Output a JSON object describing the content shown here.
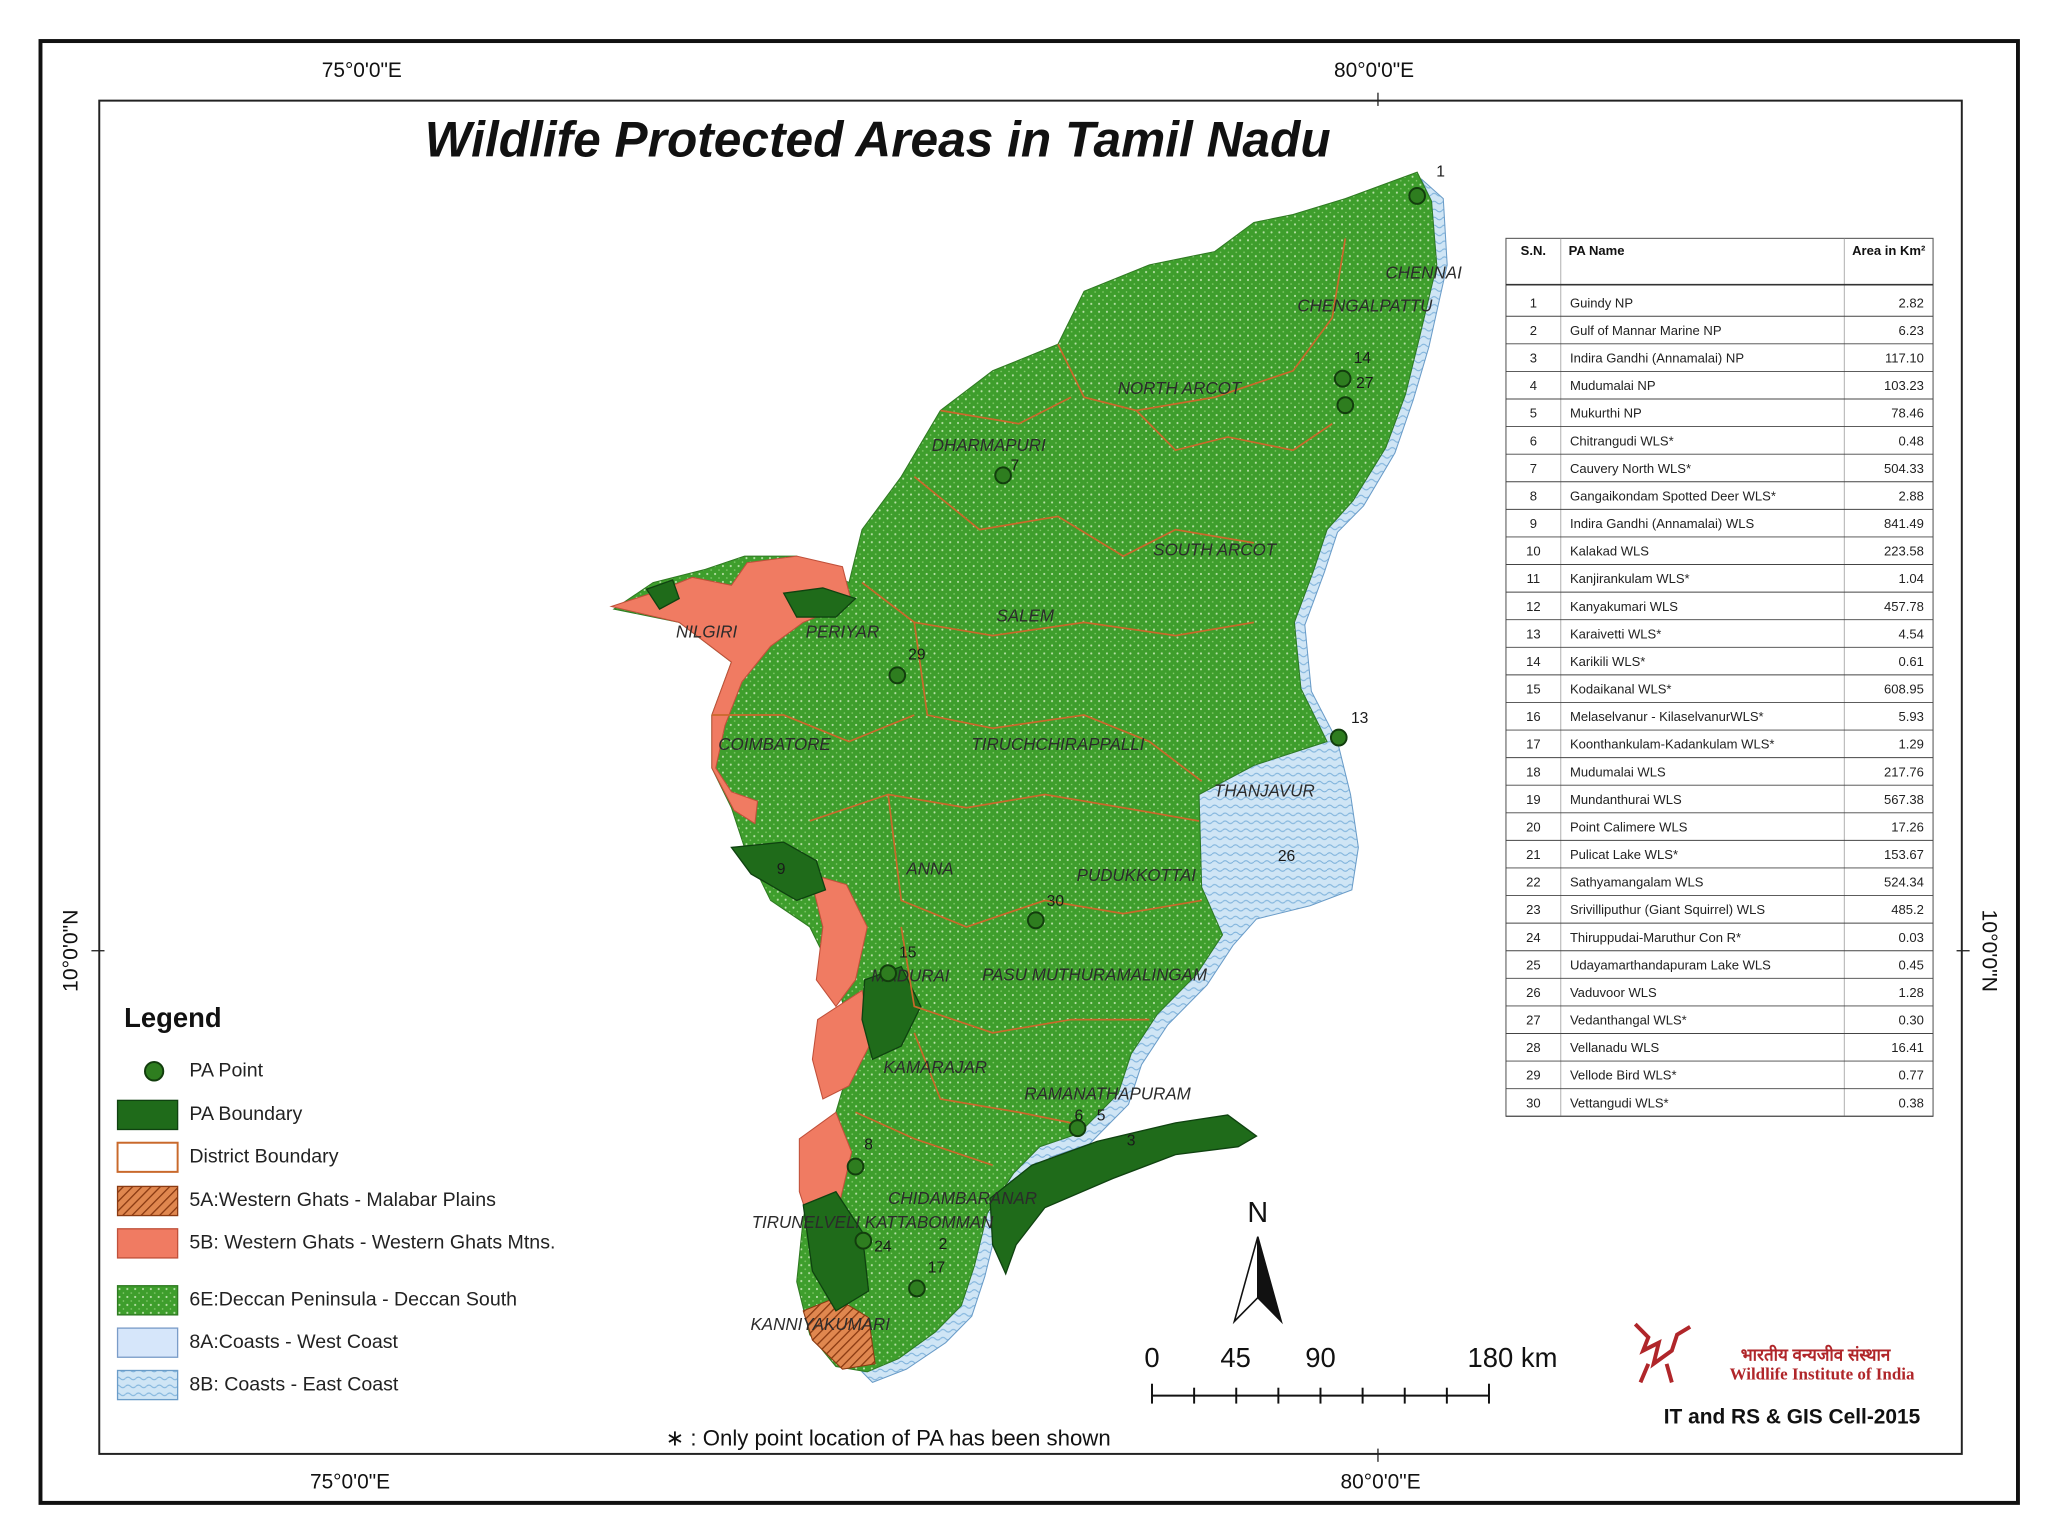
{
  "title": "Wildlife Protected Areas  in Tamil Nadu",
  "graticule": {
    "top": [
      "75°0'0\"E",
      "80°0'0\"E"
    ],
    "bottom": [
      "75°0'0\"E",
      "80°0'0\"E"
    ],
    "left": "10°0'0\"N",
    "right": "10°0'0\"N"
  },
  "districts": [
    "CHENNAI",
    "CHENGALPATTU",
    "NORTH ARCOT",
    "DHARMAPURI",
    "SOUTH ARCOT",
    "SALEM",
    "NILGIRI",
    "PERIYAR",
    "COIMBATORE",
    "TIRUCHCHIRAPPALLI",
    "THANJAVUR",
    "ANNA",
    "PUDUKKOTTAI",
    "MADURAI",
    "PASU MUTHURAMALINGAM",
    "KAMARAJAR",
    "RAMANATHAPURAM",
    "CHIDAMBARANAR",
    "TIRUNELVELI KATTABOMMAN",
    "KANNIYAKUMARI"
  ],
  "pa_points": [
    "1",
    "14",
    "27",
    "7",
    "29",
    "13",
    "26",
    "30",
    "15",
    "9",
    "8",
    "24",
    "17",
    "2",
    "6",
    "5",
    "3"
  ],
  "table": {
    "header": [
      "S.N.",
      "PA Name",
      "Area in Km²"
    ],
    "rows": [
      [
        "1",
        "Guindy NP",
        "2.82"
      ],
      [
        "2",
        "Gulf of Mannar Marine NP",
        "6.23"
      ],
      [
        "3",
        "Indira Gandhi (Annamalai) NP",
        "117.10"
      ],
      [
        "4",
        "Mudumalai NP",
        "103.23"
      ],
      [
        "5",
        "Mukurthi NP",
        "78.46"
      ],
      [
        "6",
        "Chitrangudi WLS*",
        "0.48"
      ],
      [
        "7",
        "Cauvery North WLS*",
        "504.33"
      ],
      [
        "8",
        "Gangaikondam Spotted Deer WLS*",
        "2.88"
      ],
      [
        "9",
        "Indira Gandhi (Annamalai) WLS",
        "841.49"
      ],
      [
        "10",
        "Kalakad WLS",
        "223.58"
      ],
      [
        "11",
        "Kanjirankulam WLS*",
        "1.04"
      ],
      [
        "12",
        "Kanyakumari WLS",
        "457.78"
      ],
      [
        "13",
        "Karaivetti WLS*",
        "4.54"
      ],
      [
        "14",
        "Karikili WLS*",
        "0.61"
      ],
      [
        "15",
        "Kodaikanal WLS*",
        "608.95"
      ],
      [
        "16",
        "Melaselvanur - KilaselvanurWLS*",
        "5.93"
      ],
      [
        "17",
        "Koonthankulam-Kadankulam WLS*",
        "1.29"
      ],
      [
        "18",
        "Mudumalai WLS",
        "217.76"
      ],
      [
        "19",
        "Mundanthurai WLS",
        "567.38"
      ],
      [
        "20",
        "Point Calimere WLS",
        "17.26"
      ],
      [
        "21",
        "Pulicat Lake WLS*",
        "153.67"
      ],
      [
        "22",
        "Sathyamangalam WLS",
        "524.34"
      ],
      [
        "23",
        "Srivilliputhur (Giant Squirrel) WLS",
        "485.2"
      ],
      [
        "24",
        "Thiruppudai-Maruthur Con R*",
        "0.03"
      ],
      [
        "25",
        "Udayamarthandapuram Lake WLS",
        "0.45"
      ],
      [
        "26",
        "Vaduvoor WLS",
        "1.28"
      ],
      [
        "27",
        "Vedanthangal WLS*",
        "0.30"
      ],
      [
        "28",
        "Vellanadu WLS",
        "16.41"
      ],
      [
        "29",
        "Vellode Bird WLS*",
        "0.77"
      ],
      [
        "30",
        "Vettangudi WLS*",
        "0.38"
      ]
    ]
  },
  "legend": {
    "title": "Legend",
    "items": [
      "PA Point",
      "PA Boundary",
      "District Boundary",
      "5A:Western Ghats - Malabar Plains",
      "5B: Western Ghats - Western Ghats Mtns.",
      "6E:Deccan Peninsula - Deccan South",
      "8A:Coasts - West Coast",
      "8B: Coasts - East Coast"
    ]
  },
  "scale_bar": [
    "0",
    "45",
    "90",
    "180 km"
  ],
  "north_arrow": "N",
  "footnote": "∗ : Only point location of PA has been shown",
  "logo": {
    "hindi": "भारतीय वन्यजीव संस्थान",
    "english": "Wildlife Institute of India"
  },
  "credit": "IT and RS & GIS Cell-2015"
}
